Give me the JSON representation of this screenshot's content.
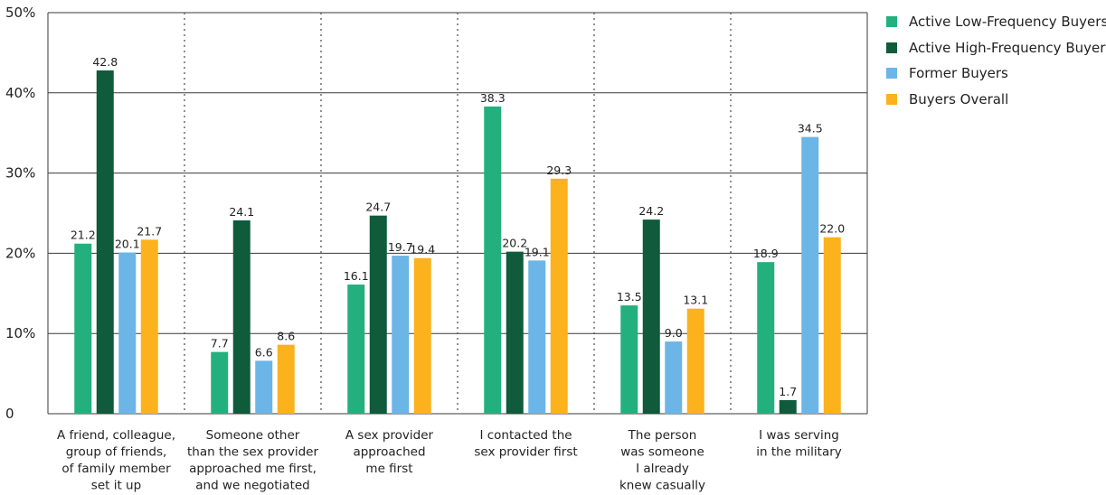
{
  "chart_data": {
    "type": "bar",
    "categories": [
      [
        "A friend, colleague,",
        "group of friends,",
        "of family member",
        "set it up"
      ],
      [
        "Someone other",
        "than the sex provider",
        "approached me first,",
        "and we negotiated"
      ],
      [
        "A sex provider",
        "approached",
        "me first"
      ],
      [
        "I contacted the",
        "sex provider first"
      ],
      [
        "The person",
        "was someone",
        "I already",
        "knew casually"
      ],
      [
        "I was serving",
        "in the military"
      ]
    ],
    "series": [
      {
        "name": "Active Low-Frequency Buyers",
        "color": "#23b07e",
        "values": [
          21.2,
          7.7,
          16.1,
          38.3,
          13.5,
          18.9
        ]
      },
      {
        "name": "Active High-Frequency Buyers",
        "color": "#0f5b3c",
        "values": [
          42.8,
          24.1,
          24.7,
          20.2,
          24.2,
          1.7
        ]
      },
      {
        "name": "Former Buyers",
        "color": "#6cb5e7",
        "values": [
          20.1,
          6.6,
          19.7,
          19.1,
          9.0,
          34.5
        ]
      },
      {
        "name": "Buyers Overall",
        "color": "#fbb21c",
        "values": [
          21.7,
          8.6,
          19.4,
          29.3,
          13.1,
          22.0
        ]
      }
    ],
    "y_ticks": [
      "0",
      "10%",
      "20%",
      "30%",
      "40%",
      "50%"
    ],
    "ylim": [
      0,
      50
    ],
    "grid": true,
    "legend_position": "top-right"
  }
}
